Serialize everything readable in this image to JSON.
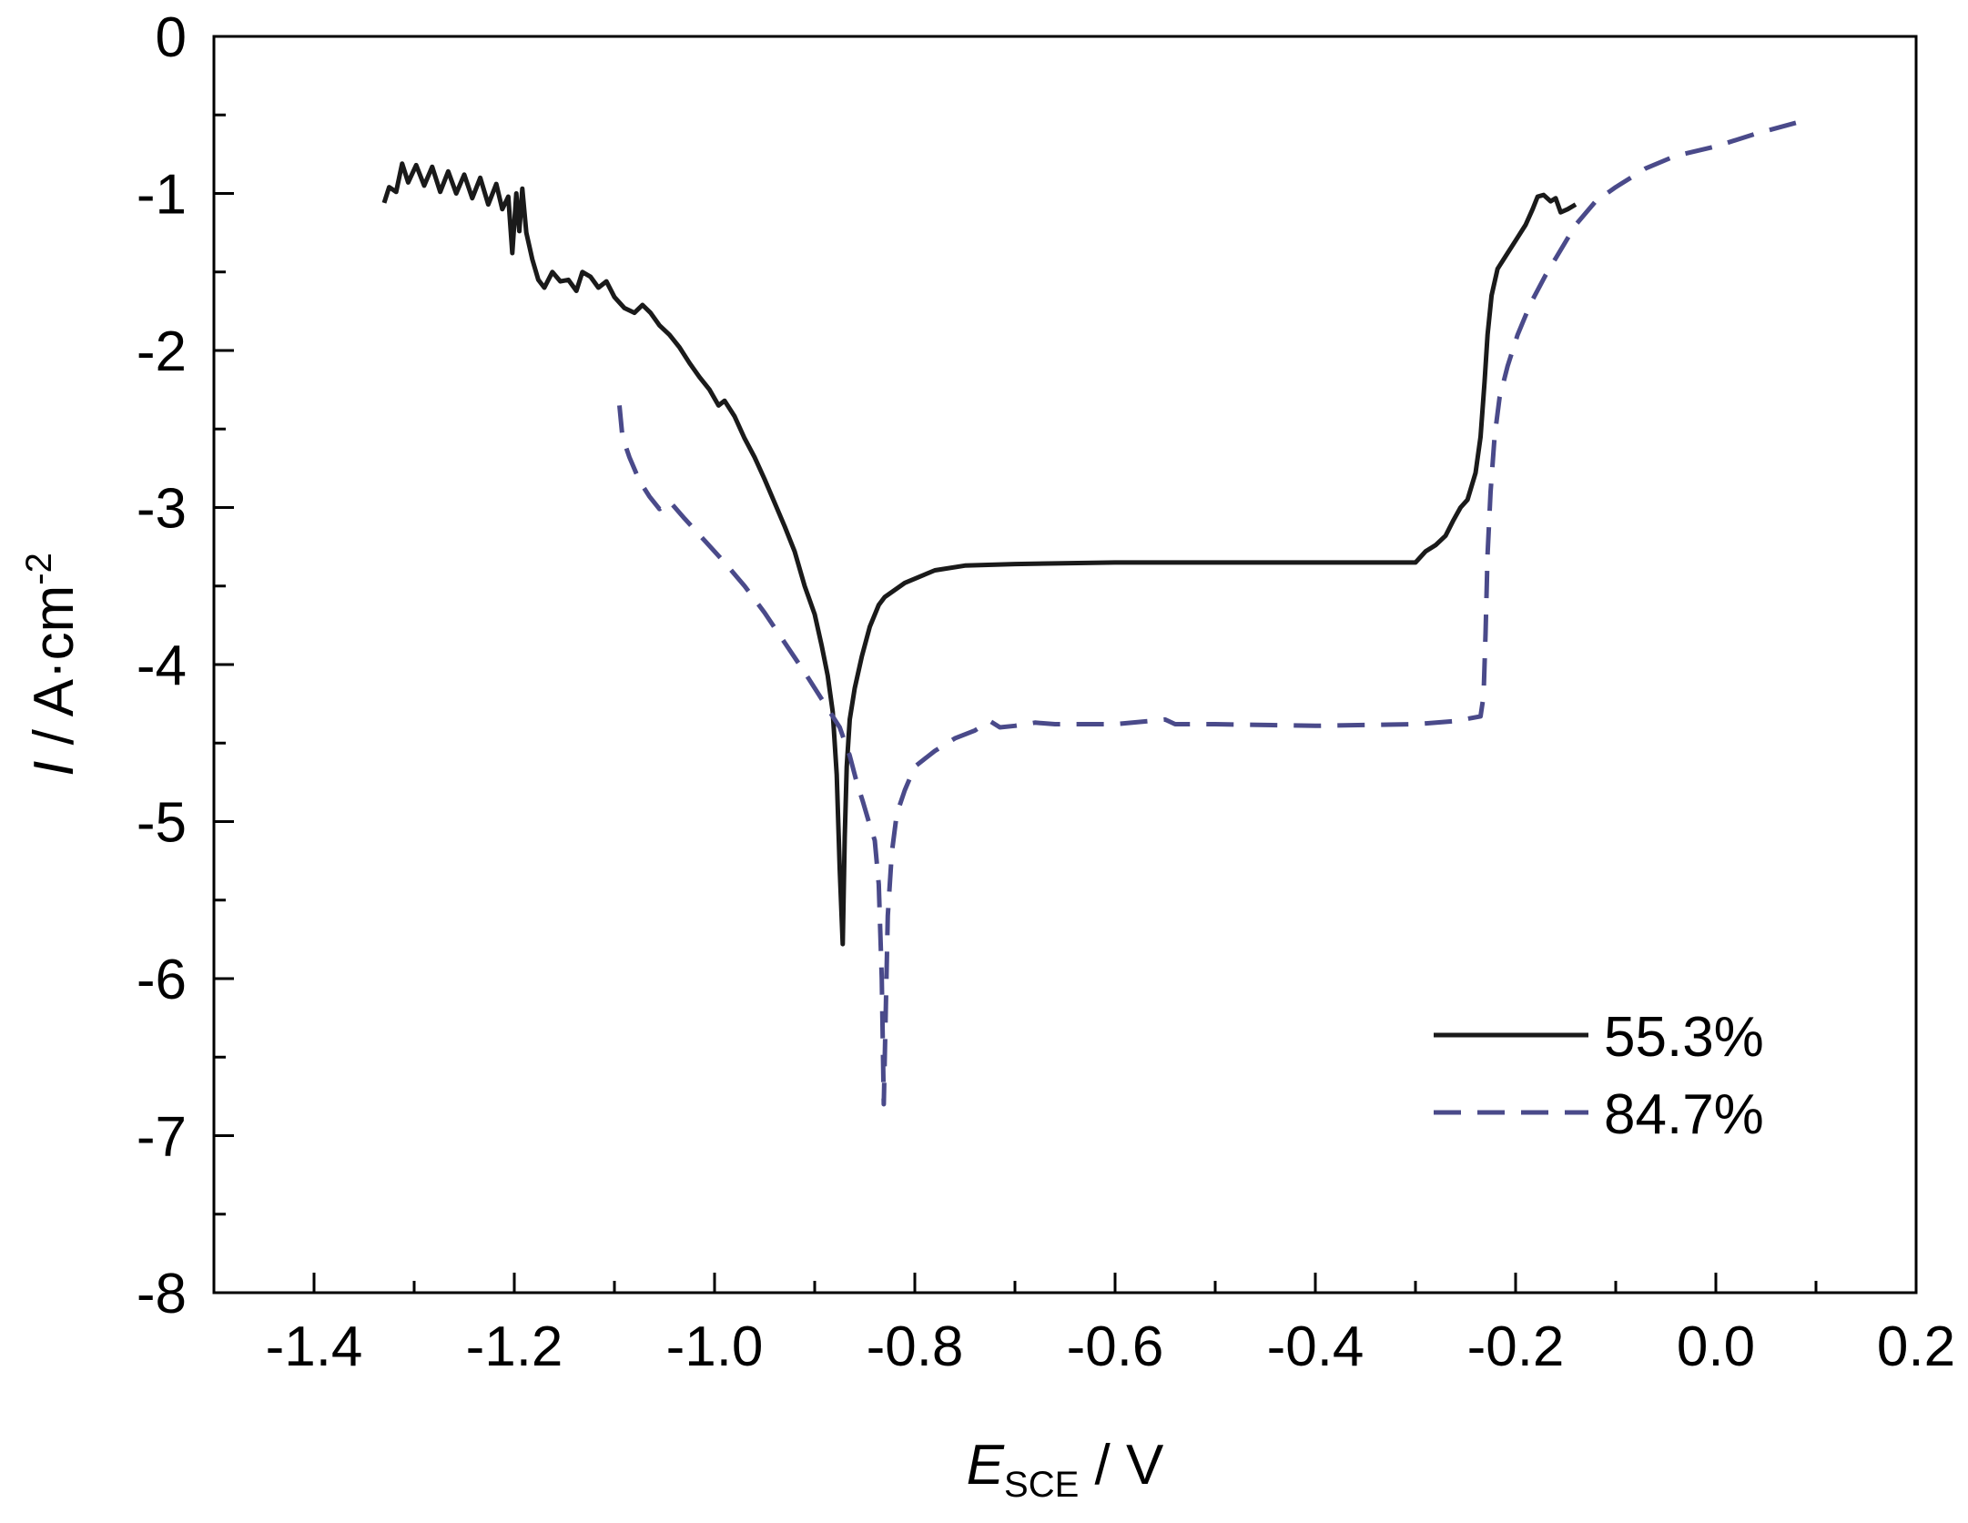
{
  "chart_data": {
    "type": "line",
    "xlabel": {
      "main": "E",
      "sub": "SCE",
      "rest": " / V"
    },
    "ylabel": {
      "main": "I",
      "rest": " / A·cm",
      "sup": "-2"
    },
    "xlim": [
      -1.5,
      0.2
    ],
    "ylim": [
      -8,
      0
    ],
    "xticks": [
      -1.4,
      -1.2,
      -1.0,
      -0.8,
      -0.6,
      -0.4,
      -0.2,
      0.0,
      0.2
    ],
    "xtick_labels": [
      "-1.4",
      "-1.2",
      "-1.0",
      "-0.8",
      "-0.6",
      "-0.4",
      "-0.2",
      "0.0",
      "0.2"
    ],
    "xminor": [
      -1.3,
      -1.1,
      -0.9,
      -0.7,
      -0.5,
      -0.3,
      -0.1,
      0.1
    ],
    "yticks": [
      0,
      -1,
      -2,
      -3,
      -4,
      -5,
      -6,
      -7,
      -8
    ],
    "ytick_labels": [
      "0",
      "-1",
      "-2",
      "-3",
      "-4",
      "-5",
      "-6",
      "-7",
      "-8"
    ],
    "yminor": [
      -0.5,
      -1.5,
      -2.5,
      -3.5,
      -4.5,
      -5.5,
      -6.5,
      -7.5
    ],
    "grid": false,
    "legend_position": "bottom-right",
    "series": [
      {
        "name": "55.3%",
        "color": "#1a1a1a",
        "style": "solid",
        "points": [
          [
            -1.33,
            -1.06
          ],
          [
            -1.325,
            -0.96
          ],
          [
            -1.318,
            -0.99
          ],
          [
            -1.312,
            -0.81
          ],
          [
            -1.306,
            -0.93
          ],
          [
            -1.298,
            -0.82
          ],
          [
            -1.29,
            -0.95
          ],
          [
            -1.282,
            -0.83
          ],
          [
            -1.274,
            -0.99
          ],
          [
            -1.266,
            -0.86
          ],
          [
            -1.258,
            -1.0
          ],
          [
            -1.25,
            -0.88
          ],
          [
            -1.242,
            -1.03
          ],
          [
            -1.234,
            -0.9
          ],
          [
            -1.226,
            -1.07
          ],
          [
            -1.218,
            -0.94
          ],
          [
            -1.212,
            -1.1
          ],
          [
            -1.206,
            -1.02
          ],
          [
            -1.202,
            -1.38
          ],
          [
            -1.198,
            -1.0
          ],
          [
            -1.195,
            -1.24
          ],
          [
            -1.192,
            -0.97
          ],
          [
            -1.188,
            -1.25
          ],
          [
            -1.182,
            -1.42
          ],
          [
            -1.176,
            -1.55
          ],
          [
            -1.17,
            -1.6
          ],
          [
            -1.162,
            -1.5
          ],
          [
            -1.154,
            -1.56
          ],
          [
            -1.146,
            -1.55
          ],
          [
            -1.138,
            -1.62
          ],
          [
            -1.132,
            -1.5
          ],
          [
            -1.124,
            -1.53
          ],
          [
            -1.116,
            -1.6
          ],
          [
            -1.108,
            -1.56
          ],
          [
            -1.1,
            -1.66
          ],
          [
            -1.09,
            -1.73
          ],
          [
            -1.08,
            -1.76
          ],
          [
            -1.072,
            -1.71
          ],
          [
            -1.064,
            -1.76
          ],
          [
            -1.055,
            -1.84
          ],
          [
            -1.045,
            -1.9
          ],
          [
            -1.035,
            -1.98
          ],
          [
            -1.025,
            -2.08
          ],
          [
            -1.015,
            -2.17
          ],
          [
            -1.005,
            -2.25
          ],
          [
            -0.996,
            -2.35
          ],
          [
            -0.99,
            -2.32
          ],
          [
            -0.98,
            -2.42
          ],
          [
            -0.97,
            -2.56
          ],
          [
            -0.96,
            -2.68
          ],
          [
            -0.95,
            -2.82
          ],
          [
            -0.94,
            -2.97
          ],
          [
            -0.93,
            -3.12
          ],
          [
            -0.92,
            -3.28
          ],
          [
            -0.91,
            -3.5
          ],
          [
            -0.9,
            -3.68
          ],
          [
            -0.893,
            -3.88
          ],
          [
            -0.887,
            -4.07
          ],
          [
            -0.882,
            -4.3
          ],
          [
            -0.878,
            -4.7
          ],
          [
            -0.875,
            -5.3
          ],
          [
            -0.872,
            -5.78
          ],
          [
            -0.87,
            -5.1
          ],
          [
            -0.868,
            -4.65
          ],
          [
            -0.865,
            -4.35
          ],
          [
            -0.86,
            -4.15
          ],
          [
            -0.853,
            -3.95
          ],
          [
            -0.845,
            -3.76
          ],
          [
            -0.836,
            -3.62
          ],
          [
            -0.83,
            -3.57
          ],
          [
            -0.81,
            -3.48
          ],
          [
            -0.78,
            -3.4
          ],
          [
            -0.75,
            -3.37
          ],
          [
            -0.7,
            -3.36
          ],
          [
            -0.6,
            -3.35
          ],
          [
            -0.5,
            -3.35
          ],
          [
            -0.4,
            -3.35
          ],
          [
            -0.32,
            -3.35
          ],
          [
            -0.3,
            -3.35
          ],
          [
            -0.29,
            -3.28
          ],
          [
            -0.28,
            -3.24
          ],
          [
            -0.27,
            -3.18
          ],
          [
            -0.262,
            -3.08
          ],
          [
            -0.255,
            -3.0
          ],
          [
            -0.248,
            -2.95
          ],
          [
            -0.24,
            -2.78
          ],
          [
            -0.235,
            -2.55
          ],
          [
            -0.231,
            -2.2
          ],
          [
            -0.228,
            -1.9
          ],
          [
            -0.224,
            -1.65
          ],
          [
            -0.218,
            -1.48
          ],
          [
            -0.21,
            -1.4
          ],
          [
            -0.2,
            -1.3
          ],
          [
            -0.19,
            -1.2
          ],
          [
            -0.183,
            -1.1
          ],
          [
            -0.178,
            -1.02
          ],
          [
            -0.172,
            -1.01
          ],
          [
            -0.165,
            -1.05
          ],
          [
            -0.16,
            -1.03
          ],
          [
            -0.155,
            -1.12
          ],
          [
            -0.148,
            -1.1
          ],
          [
            -0.14,
            -1.07
          ]
        ]
      },
      {
        "name": "84.7%",
        "color": "#4a4a8a",
        "style": "dashed",
        "points": [
          [
            -1.095,
            -2.35
          ],
          [
            -1.092,
            -2.55
          ],
          [
            -1.085,
            -2.68
          ],
          [
            -1.075,
            -2.83
          ],
          [
            -1.065,
            -2.93
          ],
          [
            -1.055,
            -3.01
          ],
          [
            -1.045,
            -2.96
          ],
          [
            -1.03,
            -3.07
          ],
          [
            -1.01,
            -3.21
          ],
          [
            -0.99,
            -3.35
          ],
          [
            -0.97,
            -3.5
          ],
          [
            -0.95,
            -3.67
          ],
          [
            -0.93,
            -3.86
          ],
          [
            -0.91,
            -4.05
          ],
          [
            -0.89,
            -4.25
          ],
          [
            -0.875,
            -4.4
          ],
          [
            -0.865,
            -4.58
          ],
          [
            -0.858,
            -4.75
          ],
          [
            -0.852,
            -4.87
          ],
          [
            -0.846,
            -5.0
          ],
          [
            -0.84,
            -5.12
          ],
          [
            -0.836,
            -5.4
          ],
          [
            -0.833,
            -6.0
          ],
          [
            -0.831,
            -6.8
          ],
          [
            -0.829,
            -6.2
          ],
          [
            -0.827,
            -5.6
          ],
          [
            -0.823,
            -5.2
          ],
          [
            -0.818,
            -4.95
          ],
          [
            -0.81,
            -4.8
          ],
          [
            -0.8,
            -4.65
          ],
          [
            -0.78,
            -4.55
          ],
          [
            -0.76,
            -4.47
          ],
          [
            -0.74,
            -4.42
          ],
          [
            -0.725,
            -4.36
          ],
          [
            -0.715,
            -4.4
          ],
          [
            -0.7,
            -4.39
          ],
          [
            -0.68,
            -4.37
          ],
          [
            -0.66,
            -4.38
          ],
          [
            -0.6,
            -4.38
          ],
          [
            -0.55,
            -4.35
          ],
          [
            -0.54,
            -4.38
          ],
          [
            -0.5,
            -4.38
          ],
          [
            -0.4,
            -4.39
          ],
          [
            -0.3,
            -4.38
          ],
          [
            -0.26,
            -4.36
          ],
          [
            -0.235,
            -4.33
          ],
          [
            -0.232,
            -4.2
          ],
          [
            -0.23,
            -3.8
          ],
          [
            -0.228,
            -3.3
          ],
          [
            -0.225,
            -2.9
          ],
          [
            -0.221,
            -2.55
          ],
          [
            -0.216,
            -2.3
          ],
          [
            -0.208,
            -2.1
          ],
          [
            -0.198,
            -1.9
          ],
          [
            -0.185,
            -1.7
          ],
          [
            -0.17,
            -1.52
          ],
          [
            -0.155,
            -1.36
          ],
          [
            -0.14,
            -1.2
          ],
          [
            -0.12,
            -1.05
          ],
          [
            -0.1,
            -0.96
          ],
          [
            -0.07,
            -0.84
          ],
          [
            -0.04,
            -0.76
          ],
          [
            0.0,
            -0.7
          ],
          [
            0.04,
            -0.62
          ],
          [
            0.08,
            -0.55
          ]
        ]
      }
    ]
  }
}
